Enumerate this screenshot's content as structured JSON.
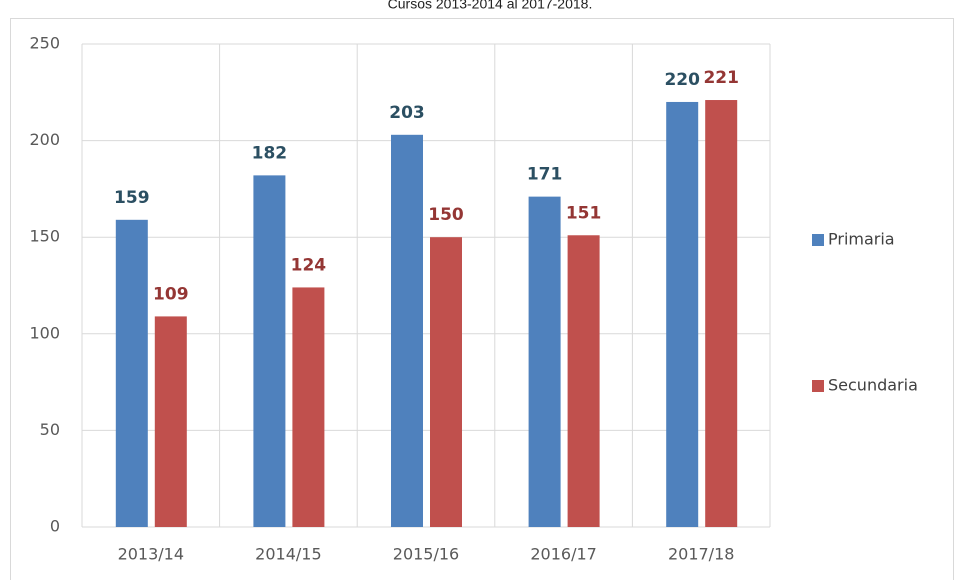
{
  "chart_data": {
    "type": "bar",
    "title": "Cursos 2013-2014 al 2017-2018.",
    "categories": [
      "2013/14",
      "2014/15",
      "2015/16",
      "2016/17",
      "2017/18"
    ],
    "series": [
      {
        "name": "Primaria",
        "color": "#4f81bd",
        "label_color": "#2b4f62",
        "values": [
          159,
          182,
          203,
          171,
          220
        ]
      },
      {
        "name": "Secundaria",
        "color": "#c0504d",
        "label_color": "#943634",
        "values": [
          109,
          124,
          150,
          151,
          221
        ]
      }
    ],
    "ylim": [
      0,
      250
    ],
    "yticks": [
      0,
      50,
      100,
      150,
      200,
      250
    ],
    "grid": true,
    "legend": "right"
  }
}
